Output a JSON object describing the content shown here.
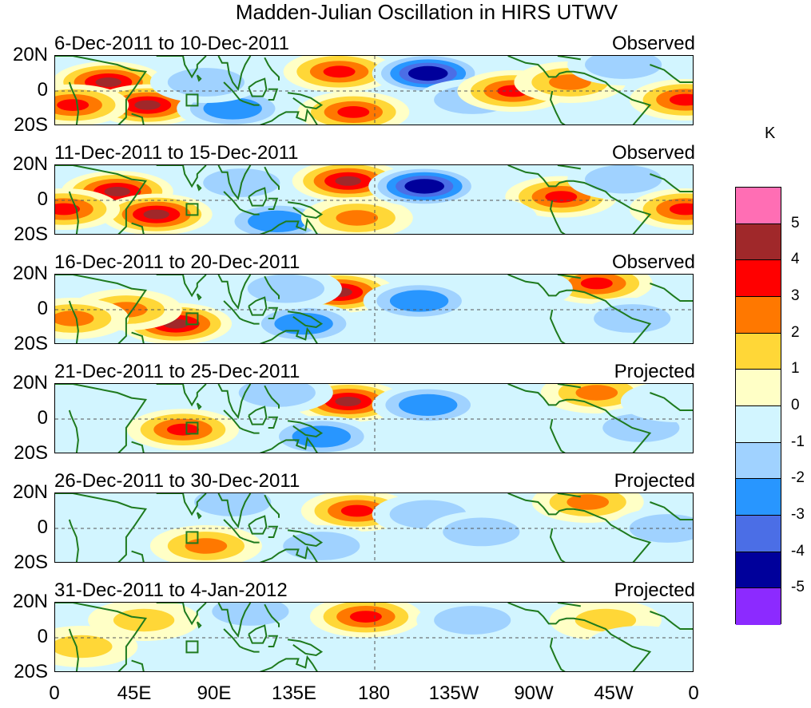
{
  "title": "Madden-Julian Oscillation in HIRS UTWV",
  "chart_data": {
    "type": "heatmap",
    "variable": "HIRS UTWV anomaly",
    "units": "K",
    "y_axis": {
      "ticks": [
        "20N",
        "0",
        "20S"
      ],
      "range": [
        -20,
        20
      ]
    },
    "x_axis": {
      "ticks": [
        "0",
        "45E",
        "90E",
        "135E",
        "180",
        "135W",
        "90W",
        "45W",
        "0"
      ],
      "range": [
        0,
        360
      ]
    },
    "colorbar": {
      "labels": [
        "5",
        "4",
        "3",
        "2",
        "1",
        "0",
        "-1",
        "-2",
        "-3",
        "-4",
        "-5"
      ],
      "colors": [
        "#ff6eb4",
        "#a0282a",
        "#ff0000",
        "#ff7800",
        "#ffd737",
        "#ffffc6",
        "#d2f5ff",
        "#a0d2ff",
        "#2896ff",
        "#4b6ee6",
        "#00009b",
        "#8c2aff"
      ]
    },
    "panels": [
      {
        "period": "6-Dec-2011 to 10-Dec-2011",
        "type": "Observed",
        "features": [
          {
            "lon": 30,
            "lat": 5,
            "val": 4
          },
          {
            "lon": 52,
            "lat": -8,
            "val": 4
          },
          {
            "lon": 10,
            "lat": -8,
            "val": 3
          },
          {
            "lon": 100,
            "lat": -10,
            "val": -3
          },
          {
            "lon": 85,
            "lat": 5,
            "val": -2
          },
          {
            "lon": 160,
            "lat": 11,
            "val": 3
          },
          {
            "lon": 168,
            "lat": -12,
            "val": 3
          },
          {
            "lon": 210,
            "lat": 10,
            "val": -5
          },
          {
            "lon": 235,
            "lat": -5,
            "val": -2
          },
          {
            "lon": 258,
            "lat": 0,
            "val": 3
          },
          {
            "lon": 290,
            "lat": 5,
            "val": 2
          },
          {
            "lon": 355,
            "lat": -5,
            "val": 3
          },
          {
            "lon": 320,
            "lat": 15,
            "val": -2
          }
        ]
      },
      {
        "period": "11-Dec-2011 to 15-Dec-2011",
        "type": "Observed",
        "features": [
          {
            "lon": 35,
            "lat": 5,
            "val": 4
          },
          {
            "lon": 57,
            "lat": -8,
            "val": 4
          },
          {
            "lon": 5,
            "lat": -5,
            "val": 3
          },
          {
            "lon": 125,
            "lat": -12,
            "val": -3
          },
          {
            "lon": 105,
            "lat": 10,
            "val": -2
          },
          {
            "lon": 165,
            "lat": 11,
            "val": 4
          },
          {
            "lon": 170,
            "lat": -10,
            "val": 2
          },
          {
            "lon": 208,
            "lat": 8,
            "val": -5
          },
          {
            "lon": 285,
            "lat": 2,
            "val": 3
          },
          {
            "lon": 320,
            "lat": 12,
            "val": -2
          },
          {
            "lon": 355,
            "lat": -5,
            "val": 3
          },
          {
            "lon": 240,
            "lat": -10,
            "val": -1
          }
        ]
      },
      {
        "period": "16-Dec-2011 to 20-Dec-2011",
        "type": "Observed",
        "features": [
          {
            "lon": 68,
            "lat": -8,
            "val": 4
          },
          {
            "lon": 40,
            "lat": 0,
            "val": 2
          },
          {
            "lon": 160,
            "lat": 10,
            "val": 4
          },
          {
            "lon": 205,
            "lat": 5,
            "val": -3
          },
          {
            "lon": 140,
            "lat": -8,
            "val": -3
          },
          {
            "lon": 130,
            "lat": 12,
            "val": -2
          },
          {
            "lon": 305,
            "lat": 15,
            "val": 3
          },
          {
            "lon": 325,
            "lat": -5,
            "val": -2
          },
          {
            "lon": 10,
            "lat": -5,
            "val": 2
          },
          {
            "lon": 260,
            "lat": 12,
            "val": -1
          }
        ]
      },
      {
        "period": "21-Dec-2011 to 25-Dec-2011",
        "type": "Projected",
        "features": [
          {
            "lon": 72,
            "lat": -6,
            "val": 3
          },
          {
            "lon": 165,
            "lat": 10,
            "val": 4
          },
          {
            "lon": 210,
            "lat": 8,
            "val": -3
          },
          {
            "lon": 150,
            "lat": -10,
            "val": -3
          },
          {
            "lon": 125,
            "lat": 15,
            "val": -2
          },
          {
            "lon": 305,
            "lat": 15,
            "val": 2
          },
          {
            "lon": 330,
            "lat": -5,
            "val": -2
          },
          {
            "lon": 350,
            "lat": 10,
            "val": -1
          }
        ]
      },
      {
        "period": "26-Dec-2011 to 30-Dec-2011",
        "type": "Projected",
        "features": [
          {
            "lon": 170,
            "lat": 10,
            "val": 3
          },
          {
            "lon": 100,
            "lat": 15,
            "val": -2
          },
          {
            "lon": 210,
            "lat": 8,
            "val": -2
          },
          {
            "lon": 85,
            "lat": -10,
            "val": 2
          },
          {
            "lon": 150,
            "lat": -10,
            "val": -2
          },
          {
            "lon": 300,
            "lat": 15,
            "val": 2
          },
          {
            "lon": 345,
            "lat": 0,
            "val": -2
          },
          {
            "lon": 240,
            "lat": -2,
            "val": -2
          }
        ]
      },
      {
        "period": "31-Dec-2011 to 4-Jan-2012",
        "type": "Projected",
        "features": [
          {
            "lon": 175,
            "lat": 12,
            "val": 3
          },
          {
            "lon": 110,
            "lat": 15,
            "val": -2
          },
          {
            "lon": 235,
            "lat": 10,
            "val": -2
          },
          {
            "lon": 50,
            "lat": 10,
            "val": 1
          },
          {
            "lon": 145,
            "lat": -10,
            "val": -1
          },
          {
            "lon": 310,
            "lat": 10,
            "val": 1
          },
          {
            "lon": 330,
            "lat": -5,
            "val": -1
          },
          {
            "lon": 15,
            "lat": -5,
            "val": 1
          }
        ]
      }
    ]
  }
}
